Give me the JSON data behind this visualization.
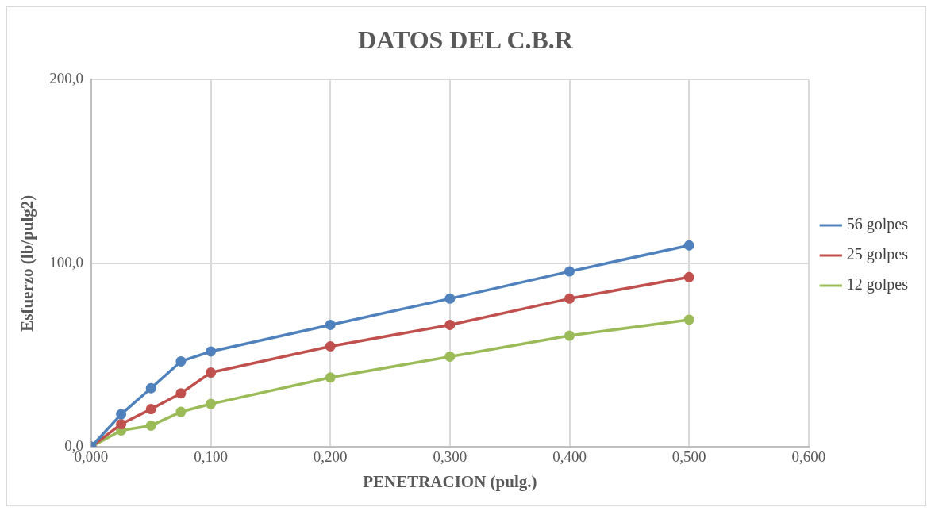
{
  "chart_data": {
    "type": "line",
    "title": "DATOS DEL C.B.R",
    "xlabel": "PENETRACION (pulg.)",
    "ylabel": "Esfuerzo (lb/pulg2)",
    "x": [
      0,
      0.025,
      0.05,
      0.075,
      0.1,
      0.2,
      0.3,
      0.4,
      0.5
    ],
    "series": [
      {
        "name": "56 golpes",
        "color": "#4f81bd",
        "values": [
          0,
          17.7,
          31.9,
          46.5,
          51.9,
          66.4,
          80.7,
          95.5,
          109.7
        ]
      },
      {
        "name": "25 golpes",
        "color": "#c0504d",
        "values": [
          0,
          12.3,
          20.5,
          29.1,
          40.4,
          54.7,
          66.4,
          80.7,
          92.4
        ]
      },
      {
        "name": "12 golpes",
        "color": "#9bbb59",
        "values": [
          0,
          8.9,
          11.5,
          19.0,
          23.3,
          37.7,
          49.1,
          60.5,
          69.2
        ]
      }
    ],
    "xlim": [
      0,
      0.6
    ],
    "xticks": [
      {
        "value": 0,
        "label": "0,000"
      },
      {
        "value": 0.1,
        "label": "0,100"
      },
      {
        "value": 0.2,
        "label": "0,200"
      },
      {
        "value": 0.3,
        "label": "0,300"
      },
      {
        "value": 0.4,
        "label": "0,400"
      },
      {
        "value": 0.5,
        "label": "0,500"
      },
      {
        "value": 0.6,
        "label": "0,600"
      }
    ],
    "ylim": [
      0,
      200
    ],
    "yticks": [
      {
        "value": 0,
        "label": "0,0"
      },
      {
        "value": 100,
        "label": "100,0"
      },
      {
        "value": 200,
        "label": "200,0"
      }
    ],
    "grid": true,
    "legend": "right",
    "marker": "circle",
    "line_style": "solid"
  }
}
